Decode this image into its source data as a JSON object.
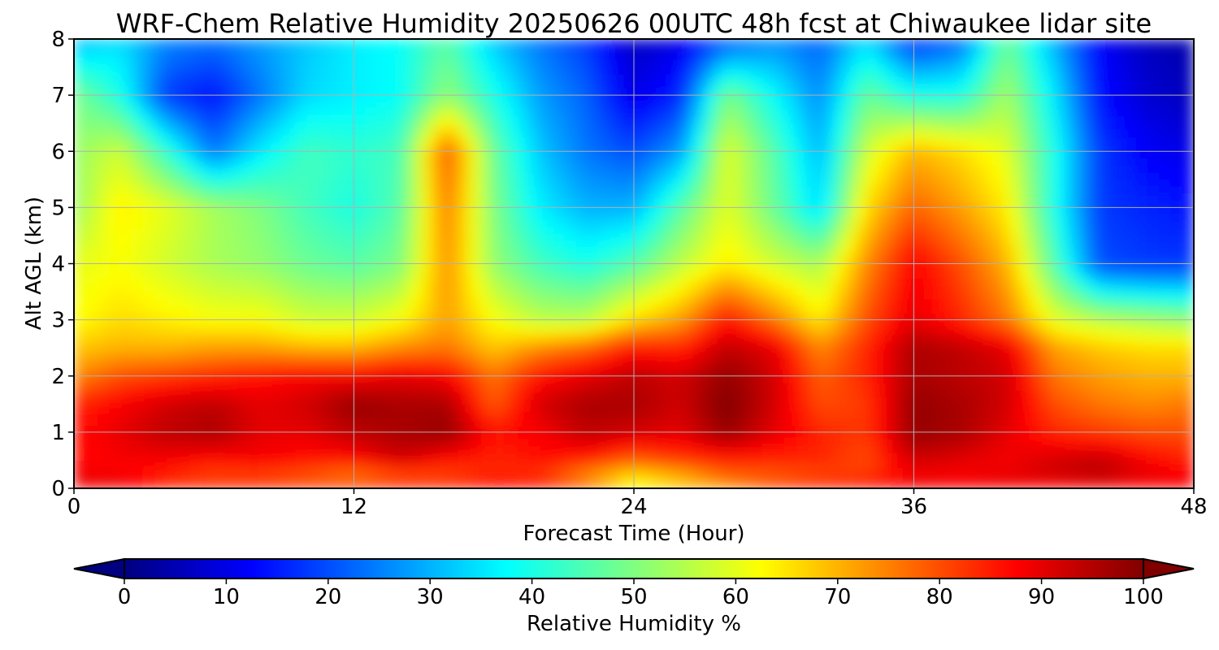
{
  "chart_data": {
    "type": "heatmap",
    "title": "WRF-Chem Relative Humidity 20250626 00UTC 48h fcst at Chiwaukee lidar site",
    "xlabel": "Forecast Time (Hour)",
    "ylabel": "Alt AGL (km)",
    "xlim": [
      0,
      48
    ],
    "ylim": [
      0,
      8
    ],
    "x_ticks": [
      "0",
      "12",
      "24",
      "36",
      "48"
    ],
    "y_ticks": [
      "0",
      "1",
      "2",
      "3",
      "4",
      "5",
      "6",
      "7",
      "8"
    ],
    "grid": true,
    "colormap": "jet",
    "colorbar": {
      "label": "Relative Humidity %",
      "orientation": "horizontal",
      "placement": "bottom",
      "extend": "both",
      "range": [
        0,
        100
      ],
      "ticks": [
        "0",
        "10",
        "20",
        "30",
        "40",
        "50",
        "60",
        "70",
        "80",
        "90",
        "100"
      ]
    },
    "x": [
      0,
      2,
      4,
      6,
      8,
      10,
      12,
      14,
      16,
      18,
      20,
      22,
      24,
      26,
      28,
      30,
      32,
      34,
      36,
      38,
      40,
      42,
      44,
      46,
      48
    ],
    "y": [
      0,
      0.25,
      0.5,
      1,
      1.5,
      2,
      2.5,
      3,
      4,
      5,
      6,
      7,
      8
    ],
    "z": [
      [
        88,
        90,
        84,
        86,
        86,
        84,
        86,
        88,
        86,
        88,
        88,
        80,
        60,
        68,
        72,
        82,
        86,
        88,
        90,
        88,
        88,
        86,
        88,
        86,
        88
      ],
      [
        90,
        88,
        84,
        80,
        80,
        78,
        74,
        78,
        80,
        84,
        82,
        72,
        66,
        70,
        78,
        78,
        80,
        82,
        88,
        88,
        90,
        92,
        94,
        90,
        88
      ],
      [
        86,
        88,
        88,
        86,
        88,
        86,
        86,
        92,
        86,
        84,
        86,
        84,
        78,
        82,
        84,
        84,
        84,
        80,
        92,
        90,
        88,
        92,
        94,
        88,
        84
      ],
      [
        86,
        90,
        94,
        96,
        90,
        90,
        94,
        96,
        98,
        86,
        88,
        94,
        92,
        90,
        98,
        90,
        84,
        82,
        98,
        96,
        90,
        84,
        82,
        80,
        80
      ],
      [
        84,
        88,
        92,
        94,
        90,
        92,
        98,
        96,
        96,
        78,
        92,
        96,
        96,
        92,
        100,
        92,
        80,
        82,
        98,
        96,
        92,
        80,
        76,
        74,
        76
      ],
      [
        74,
        80,
        82,
        84,
        86,
        88,
        88,
        90,
        88,
        76,
        86,
        90,
        94,
        92,
        98,
        92,
        78,
        84,
        96,
        94,
        92,
        76,
        72,
        70,
        70
      ],
      [
        68,
        70,
        70,
        72,
        72,
        70,
        70,
        74,
        76,
        68,
        74,
        78,
        86,
        84,
        94,
        90,
        74,
        84,
        96,
        94,
        90,
        72,
        68,
        66,
        66
      ],
      [
        62,
        66,
        64,
        62,
        62,
        58,
        58,
        62,
        72,
        62,
        56,
        56,
        66,
        72,
        86,
        76,
        64,
        80,
        90,
        84,
        76,
        60,
        56,
        54,
        52
      ],
      [
        60,
        62,
        58,
        54,
        52,
        48,
        46,
        50,
        74,
        52,
        44,
        40,
        46,
        56,
        64,
        58,
        54,
        74,
        88,
        80,
        70,
        46,
        20,
        18,
        18
      ],
      [
        52,
        64,
        60,
        54,
        50,
        44,
        40,
        46,
        76,
        50,
        36,
        30,
        30,
        46,
        60,
        48,
        34,
        66,
        78,
        72,
        64,
        40,
        18,
        16,
        14
      ],
      [
        52,
        58,
        42,
        24,
        36,
        44,
        42,
        44,
        80,
        48,
        32,
        24,
        20,
        28,
        60,
        46,
        30,
        58,
        70,
        66,
        60,
        40,
        18,
        12,
        10
      ],
      [
        50,
        40,
        18,
        14,
        24,
        34,
        36,
        38,
        52,
        40,
        28,
        22,
        10,
        16,
        50,
        38,
        26,
        48,
        40,
        40,
        54,
        36,
        14,
        8,
        6
      ],
      [
        30,
        34,
        26,
        24,
        28,
        32,
        36,
        38,
        46,
        32,
        24,
        18,
        6,
        10,
        20,
        26,
        22,
        34,
        16,
        22,
        48,
        30,
        12,
        6,
        4
      ]
    ]
  }
}
